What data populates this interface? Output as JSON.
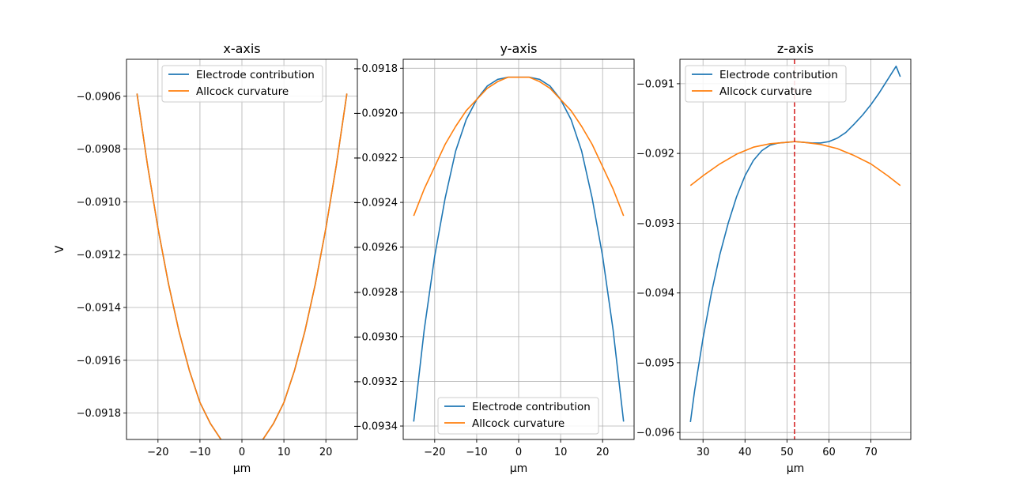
{
  "chart_data": [
    {
      "type": "line",
      "title": "x-axis",
      "xlabel": "µm",
      "ylabel": "V",
      "xlim": [
        -27.5,
        27.5
      ],
      "ylim": [
        -0.0919,
        -0.09046
      ],
      "xticks": [
        -20,
        -10,
        0,
        10,
        20
      ],
      "xtick_labels": [
        "−20",
        "−10",
        "0",
        "10",
        "20"
      ],
      "yticks": [
        -0.0918,
        -0.0916,
        -0.0914,
        -0.0912,
        -0.091,
        -0.0908,
        -0.0906
      ],
      "ytick_labels": [
        "−0.0918",
        "−0.0916",
        "−0.0914",
        "−0.0912",
        "−0.0910",
        "−0.0908",
        "−0.0906"
      ],
      "grid": true,
      "legend": "upper-center",
      "series": [
        {
          "name": "Electrode contribution",
          "color": "#1f77b4",
          "x": [
            -25,
            -22.5,
            -20,
            -17.5,
            -15,
            -12.5,
            -10,
            -7.5,
            -5,
            -2.5,
            0,
            2.5,
            5,
            7.5,
            10,
            12.5,
            15,
            17.5,
            20,
            22.5,
            25
          ],
          "y": [
            -0.09059,
            -0.09086,
            -0.0911,
            -0.09131,
            -0.09149,
            -0.09164,
            -0.09176,
            -0.09184,
            -0.0919,
            -0.09193,
            -0.09194,
            -0.09193,
            -0.0919,
            -0.09184,
            -0.09176,
            -0.09164,
            -0.09149,
            -0.09131,
            -0.0911,
            -0.09086,
            -0.09059
          ]
        },
        {
          "name": "Allcock curvature",
          "color": "#ff7f0e",
          "x": [
            -25,
            -22.5,
            -20,
            -17.5,
            -15,
            -12.5,
            -10,
            -7.5,
            -5,
            -2.5,
            0,
            2.5,
            5,
            7.5,
            10,
            12.5,
            15,
            17.5,
            20,
            22.5,
            25
          ],
          "y": [
            -0.09059,
            -0.09086,
            -0.0911,
            -0.09131,
            -0.09149,
            -0.09164,
            -0.09176,
            -0.09184,
            -0.0919,
            -0.09193,
            -0.09194,
            -0.09193,
            -0.0919,
            -0.09184,
            -0.09176,
            -0.09164,
            -0.09149,
            -0.09131,
            -0.0911,
            -0.09086,
            -0.09059
          ]
        }
      ]
    },
    {
      "type": "line",
      "title": "y-axis",
      "xlabel": "µm",
      "ylabel": "",
      "xlim": [
        -27.5,
        27.5
      ],
      "ylim": [
        -0.09346,
        -0.09176
      ],
      "xticks": [
        -20,
        -10,
        0,
        10,
        20
      ],
      "xtick_labels": [
        "−20",
        "−10",
        "0",
        "10",
        "20"
      ],
      "yticks": [
        -0.0934,
        -0.0932,
        -0.093,
        -0.0928,
        -0.0926,
        -0.0924,
        -0.0922,
        -0.092,
        -0.0918
      ],
      "ytick_labels": [
        "−0.0934",
        "−0.0932",
        "−0.0930",
        "−0.0928",
        "−0.0926",
        "−0.0924",
        "−0.0922",
        "−0.0920",
        "−0.0918"
      ],
      "grid": true,
      "legend": "lower-center",
      "series": [
        {
          "name": "Electrode contribution",
          "color": "#1f77b4",
          "x": [
            -25,
            -22.5,
            -20,
            -17.5,
            -15,
            -12.5,
            -10,
            -7.5,
            -5,
            -2.5,
            0,
            2.5,
            5,
            7.5,
            10,
            12.5,
            15,
            17.5,
            20,
            22.5,
            25
          ],
          "y": [
            -0.09338,
            -0.09297,
            -0.09264,
            -0.09238,
            -0.09217,
            -0.09203,
            -0.09194,
            -0.09188,
            -0.09185,
            -0.09184,
            -0.09184,
            -0.09184,
            -0.09185,
            -0.09188,
            -0.09194,
            -0.09203,
            -0.09217,
            -0.09238,
            -0.09264,
            -0.09297,
            -0.09338
          ]
        },
        {
          "name": "Allcock curvature",
          "color": "#ff7f0e",
          "x": [
            -25,
            -22.5,
            -20,
            -17.5,
            -15,
            -12.5,
            -10,
            -7.5,
            -5,
            -2.5,
            0,
            2.5,
            5,
            7.5,
            10,
            12.5,
            15,
            17.5,
            20,
            22.5,
            25
          ],
          "y": [
            -0.09246,
            -0.09234,
            -0.09224,
            -0.09214,
            -0.09206,
            -0.09199,
            -0.09194,
            -0.09189,
            -0.09186,
            -0.09184,
            -0.09184,
            -0.09184,
            -0.09186,
            -0.09189,
            -0.09194,
            -0.09199,
            -0.09206,
            -0.09214,
            -0.09224,
            -0.09234,
            -0.09246
          ]
        }
      ]
    },
    {
      "type": "line",
      "title": "z-axis",
      "xlabel": "µm",
      "ylabel": "",
      "xlim": [
        24.5,
        79.5
      ],
      "ylim": [
        -0.0961,
        -0.09065
      ],
      "xticks": [
        30,
        40,
        50,
        60,
        70
      ],
      "xtick_labels": [
        "30",
        "40",
        "50",
        "60",
        "70"
      ],
      "yticks": [
        -0.096,
        -0.095,
        -0.094,
        -0.093,
        -0.092,
        -0.091
      ],
      "ytick_labels": [
        "−0.096",
        "−0.095",
        "−0.094",
        "−0.093",
        "−0.092",
        "−0.091"
      ],
      "grid": true,
      "legend": "upper-left",
      "vline": {
        "x": 51.8,
        "color": "#d62728"
      },
      "series": [
        {
          "name": "Electrode contribution",
          "color": "#1f77b4",
          "x": [
            27,
            28,
            30,
            32,
            34,
            36,
            38,
            40,
            42,
            44,
            46,
            48,
            50,
            52,
            54,
            56,
            58,
            60,
            62,
            64,
            66,
            68,
            70,
            72,
            74,
            76,
            77
          ],
          "y": [
            -0.09585,
            -0.0954,
            -0.09465,
            -0.094,
            -0.09345,
            -0.093,
            -0.09262,
            -0.09232,
            -0.0921,
            -0.09196,
            -0.09188,
            -0.09185,
            -0.09184,
            -0.09183,
            -0.09184,
            -0.09185,
            -0.09185,
            -0.09183,
            -0.09178,
            -0.0917,
            -0.09158,
            -0.09145,
            -0.0913,
            -0.09113,
            -0.09094,
            -0.09075,
            -0.0909
          ]
        },
        {
          "name": "Allcock curvature",
          "color": "#ff7f0e",
          "x": [
            27,
            30,
            34,
            38,
            42,
            46,
            50,
            51.8,
            54,
            58,
            62,
            66,
            70,
            74,
            77
          ],
          "y": [
            -0.09246,
            -0.09232,
            -0.09215,
            -0.09201,
            -0.09191,
            -0.09186,
            -0.09184,
            -0.09183,
            -0.09184,
            -0.09187,
            -0.09193,
            -0.09203,
            -0.09215,
            -0.09232,
            -0.09246
          ]
        }
      ]
    }
  ]
}
